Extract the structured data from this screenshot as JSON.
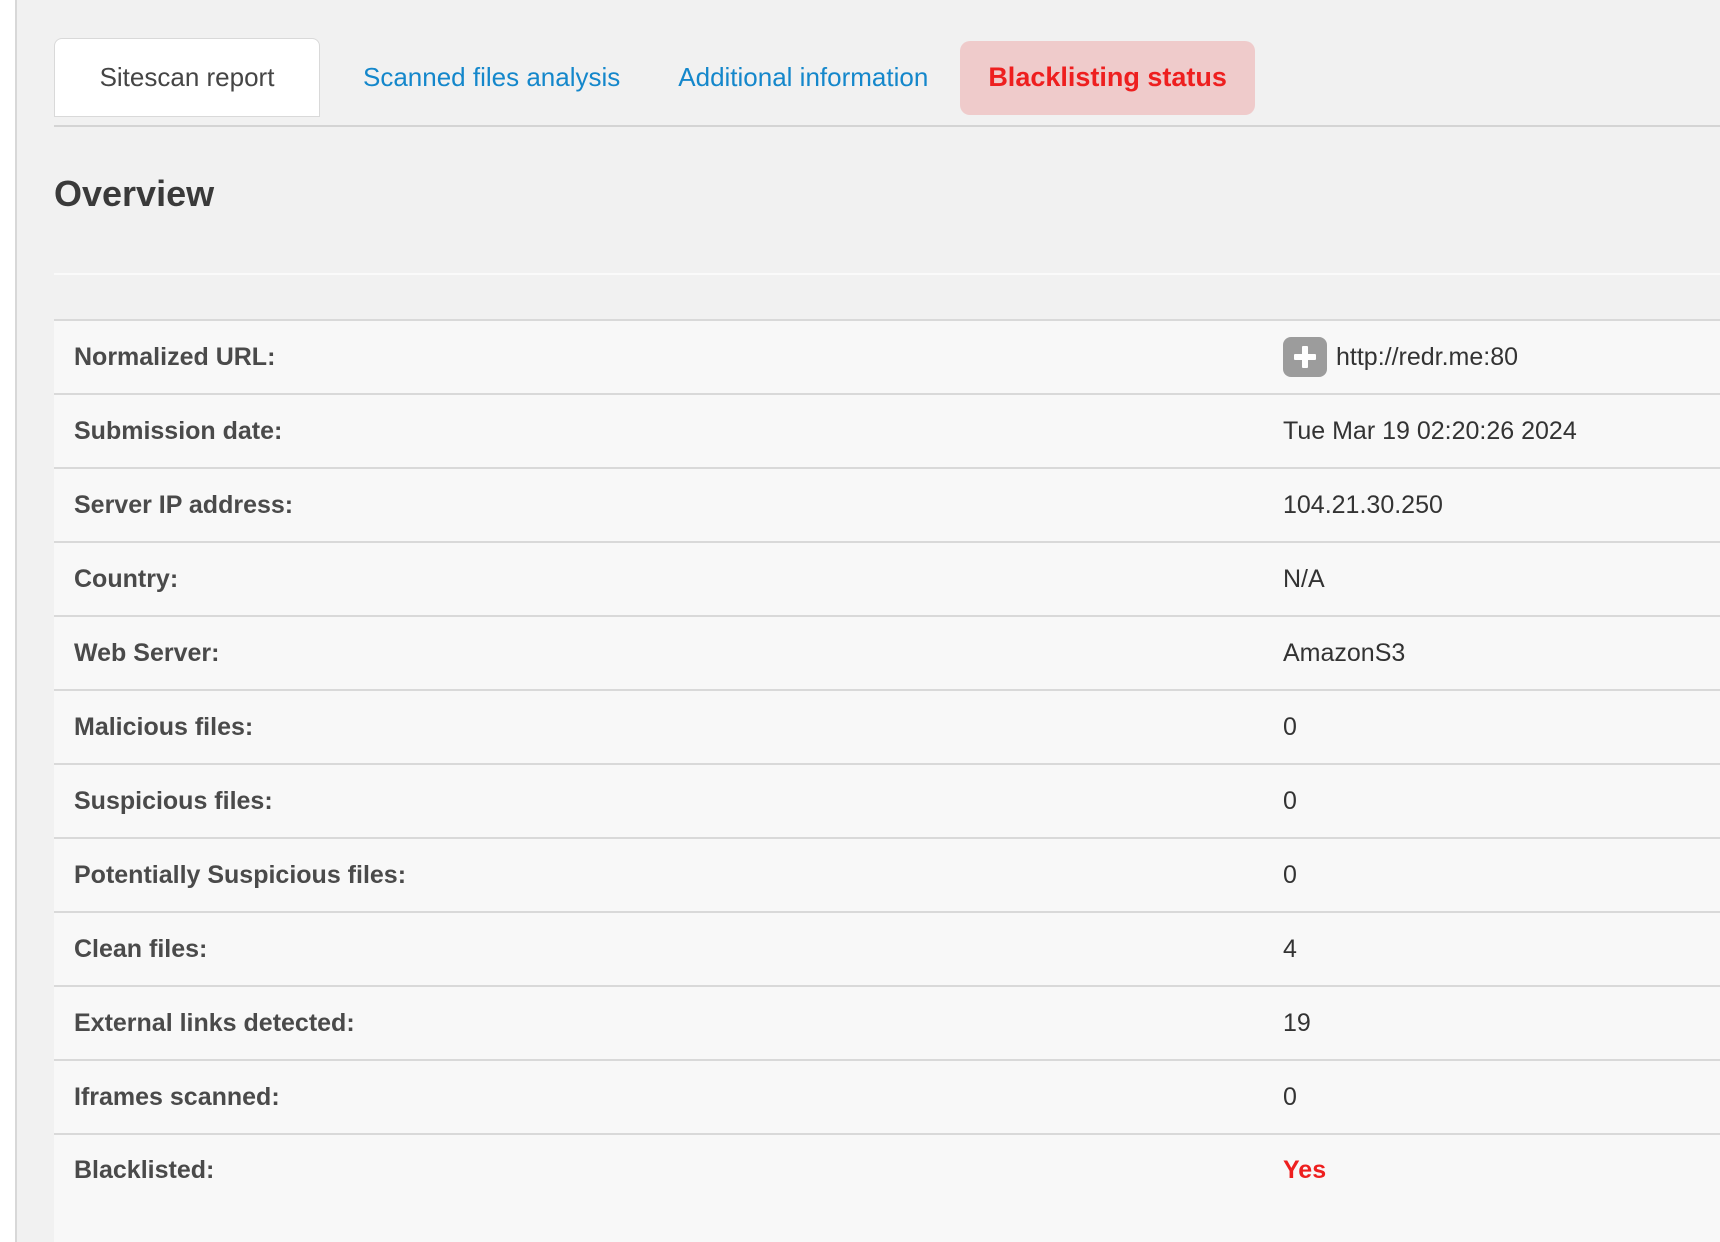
{
  "colors": {
    "link-blue": "#1487cb",
    "alert-red": "#ee1f1f",
    "alert-bg": "#efcbcb",
    "icon-gray": "#9c9c9c"
  },
  "tabs": [
    {
      "label": "Sitescan report",
      "state": "active"
    },
    {
      "label": "Scanned files analysis",
      "state": "link"
    },
    {
      "label": "Additional information",
      "state": "link"
    },
    {
      "label": "Blacklisting status",
      "state": "alert"
    }
  ],
  "section_title": "Overview",
  "overview_rows": [
    {
      "label": "Normalized URL:",
      "value": "http://redr.me:80",
      "icon": "plus-icon"
    },
    {
      "label": "Submission date:",
      "value": "Tue Mar 19 02:20:26 2024"
    },
    {
      "label": "Server IP address:",
      "value": "104.21.30.250"
    },
    {
      "label": "Country:",
      "value": "N/A"
    },
    {
      "label": "Web Server:",
      "value": "AmazonS3"
    },
    {
      "label": "Malicious files:",
      "value": "0"
    },
    {
      "label": "Suspicious files:",
      "value": "0"
    },
    {
      "label": "Potentially Suspicious files:",
      "value": "0"
    },
    {
      "label": "Clean files:",
      "value": "4"
    },
    {
      "label": "External links detected:",
      "value": "19"
    },
    {
      "label": "Iframes scanned:",
      "value": "0"
    },
    {
      "label": "Blacklisted:",
      "value": "Yes",
      "highlight": "red"
    }
  ]
}
